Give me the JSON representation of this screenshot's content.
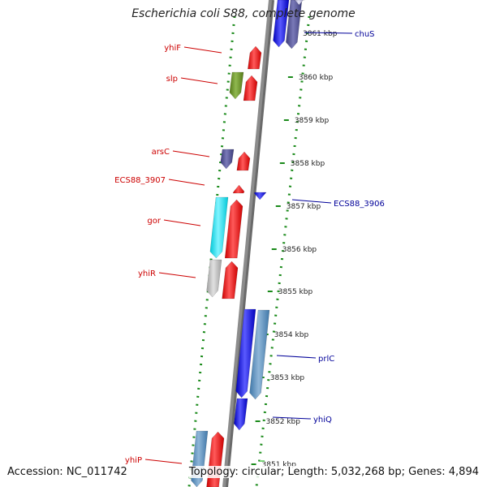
{
  "title": "Escherichia coli S88, complete genome",
  "footer": {
    "accession": "Accession: NC_011742",
    "summary": "Topology: circular; Length: 5,032,268 bp; Genes: 4,894"
  },
  "colors": {
    "forward_gene": "#ff0000",
    "reverse_gene": "#0000ee",
    "backbone": "#8c8c8c",
    "track_border": "#1a8a1a",
    "forward_label": "#cc0000",
    "reverse_label": "#000099"
  },
  "ticks": [
    {
      "label": "3861 kbp"
    },
    {
      "label": "3860 kbp"
    },
    {
      "label": "3859 kbp"
    },
    {
      "label": "3858 kbp"
    },
    {
      "label": "3857 kbp"
    },
    {
      "label": "3856 kbp"
    },
    {
      "label": "3855 kbp"
    },
    {
      "label": "3854 kbp"
    },
    {
      "label": "3853 kbp"
    },
    {
      "label": "3852 kbp"
    },
    {
      "label": "3851 kbp"
    }
  ],
  "gene_labels": [
    {
      "name": "yhiF",
      "strand": "forward"
    },
    {
      "name": "slp",
      "strand": "forward"
    },
    {
      "name": "arsC",
      "strand": "forward"
    },
    {
      "name": "ECS88_3907",
      "strand": "forward"
    },
    {
      "name": "gor",
      "strand": "forward"
    },
    {
      "name": "yhiR",
      "strand": "forward"
    },
    {
      "name": "yhiP",
      "strand": "forward"
    },
    {
      "name": "chuS",
      "strand": "reverse"
    },
    {
      "name": "ECS88_3906",
      "strand": "reverse"
    },
    {
      "name": "prlC",
      "strand": "reverse"
    },
    {
      "name": "yhiQ",
      "strand": "reverse"
    }
  ]
}
